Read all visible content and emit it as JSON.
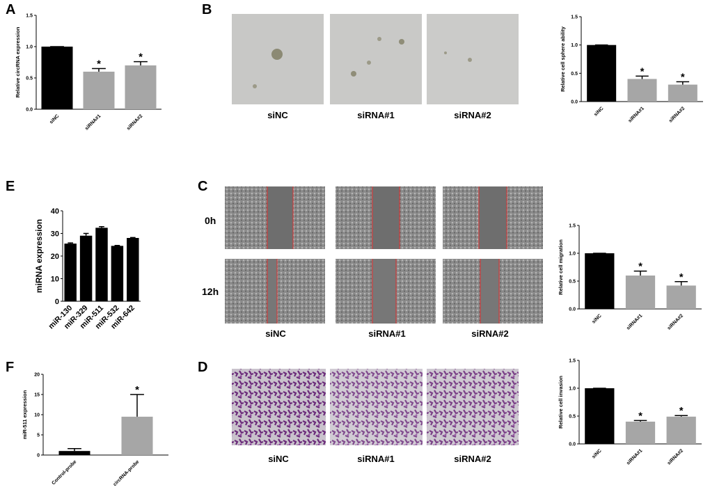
{
  "chart_data": [
    {
      "type": "bar",
      "panel": "A",
      "ylabel": "Relative circRNA expression",
      "categories": [
        "siNC",
        "siRNA#1",
        "siRNA#2"
      ],
      "values": [
        1.0,
        0.6,
        0.7
      ],
      "errors": [
        0,
        0.05,
        0.06
      ],
      "significance": [
        null,
        "*",
        "*"
      ],
      "colors": [
        "#000000",
        "#a6a6a6",
        "#a6a6a6"
      ],
      "ylim": [
        0,
        1.5
      ],
      "yticks": [
        {
          "value": 0,
          "label": "0.0"
        },
        {
          "value": 0.5,
          "label": "0.5"
        },
        {
          "value": 1,
          "label": "1.0"
        },
        {
          "value": 1.5,
          "label": "1.5"
        }
      ]
    },
    {
      "type": "bar",
      "ylabel": "Relative cell sphere ability",
      "categories": [
        "siNC",
        "siRNA#1",
        "siRNA#2"
      ],
      "values": [
        1.0,
        0.4,
        0.3
      ],
      "errors": [
        0,
        0.05,
        0.05
      ],
      "significance": [
        null,
        "*",
        "*"
      ],
      "colors": [
        "#000000",
        "#a6a6a6",
        "#a6a6a6"
      ],
      "ylim": [
        0,
        1.5
      ],
      "yticks": [
        {
          "value": 0,
          "label": "0.0"
        },
        {
          "value": 0.5,
          "label": "0.5"
        },
        {
          "value": 1,
          "label": "1.0"
        },
        {
          "value": 1.5,
          "label": "1.5"
        }
      ]
    },
    {
      "type": "bar",
      "panel": "E",
      "ylabel": "miRNA expression",
      "categories": [
        "miR-130",
        "miR-329",
        "miR-511",
        "miR-532",
        "miR-642"
      ],
      "values": [
        25.5,
        29,
        32.5,
        24.5,
        28
      ],
      "errors": [
        0.3,
        1,
        0.5,
        0.2,
        0.2
      ],
      "colors": [
        "#000000",
        "#000000",
        "#000000",
        "#000000",
        "#000000"
      ],
      "ylim": [
        0,
        40
      ],
      "yticks": [
        0,
        10,
        20,
        30,
        40
      ]
    },
    {
      "type": "bar",
      "ylabel": "Relative cell migration",
      "categories": [
        "siNC",
        "siRNA#1",
        "siRNA#2"
      ],
      "values": [
        1.0,
        0.6,
        0.42
      ],
      "errors": [
        0,
        0.08,
        0.07
      ],
      "significance": [
        null,
        "*",
        "*"
      ],
      "colors": [
        "#000000",
        "#a6a6a6",
        "#a6a6a6"
      ],
      "ylim": [
        0,
        1.5
      ],
      "yticks": [
        {
          "value": 0,
          "label": "0.0"
        },
        {
          "value": 0.5,
          "label": "0.5"
        },
        {
          "value": 1,
          "label": "1.0"
        },
        {
          "value": 1.5,
          "label": "1.5"
        }
      ]
    },
    {
      "type": "bar",
      "panel": "F",
      "ylabel": "miR-511 expression",
      "categories": [
        "Control-probe",
        "circRNA-probe"
      ],
      "values": [
        1,
        9.5
      ],
      "errors": [
        0.6,
        5.5
      ],
      "significance": [
        null,
        "*"
      ],
      "colors": [
        "#000000",
        "#a6a6a6"
      ],
      "ylim": [
        0,
        20
      ],
      "yticks": [
        0,
        5,
        10,
        15,
        20
      ]
    },
    {
      "type": "bar",
      "ylabel": "Relative cell invasion",
      "categories": [
        "siNC",
        "siRNA#1",
        "siRNA#2"
      ],
      "values": [
        1.0,
        0.4,
        0.49
      ],
      "errors": [
        0,
        0.02,
        0.02
      ],
      "significance": [
        null,
        "*",
        "*"
      ],
      "colors": [
        "#000000",
        "#a6a6a6",
        "#a6a6a6"
      ],
      "ylim": [
        0,
        1.5
      ],
      "yticks": [
        {
          "value": 0,
          "label": "0.0"
        },
        {
          "value": 0.5,
          "label": "0.5"
        },
        {
          "value": 1,
          "label": "1.0"
        },
        {
          "value": 1.5,
          "label": "1.5"
        }
      ]
    }
  ],
  "image_panels": [
    {
      "label": "B",
      "columns": [
        "siNC",
        "siRNA#1",
        "siRNA#2"
      ]
    },
    {
      "label": "C",
      "rows": [
        "0h",
        "12h"
      ],
      "columns": [
        "siNC",
        "siRNA#1",
        "siRNA#2"
      ]
    },
    {
      "label": "D",
      "columns": [
        "siNC",
        "siRNA#1",
        "siRNA#2"
      ]
    }
  ]
}
